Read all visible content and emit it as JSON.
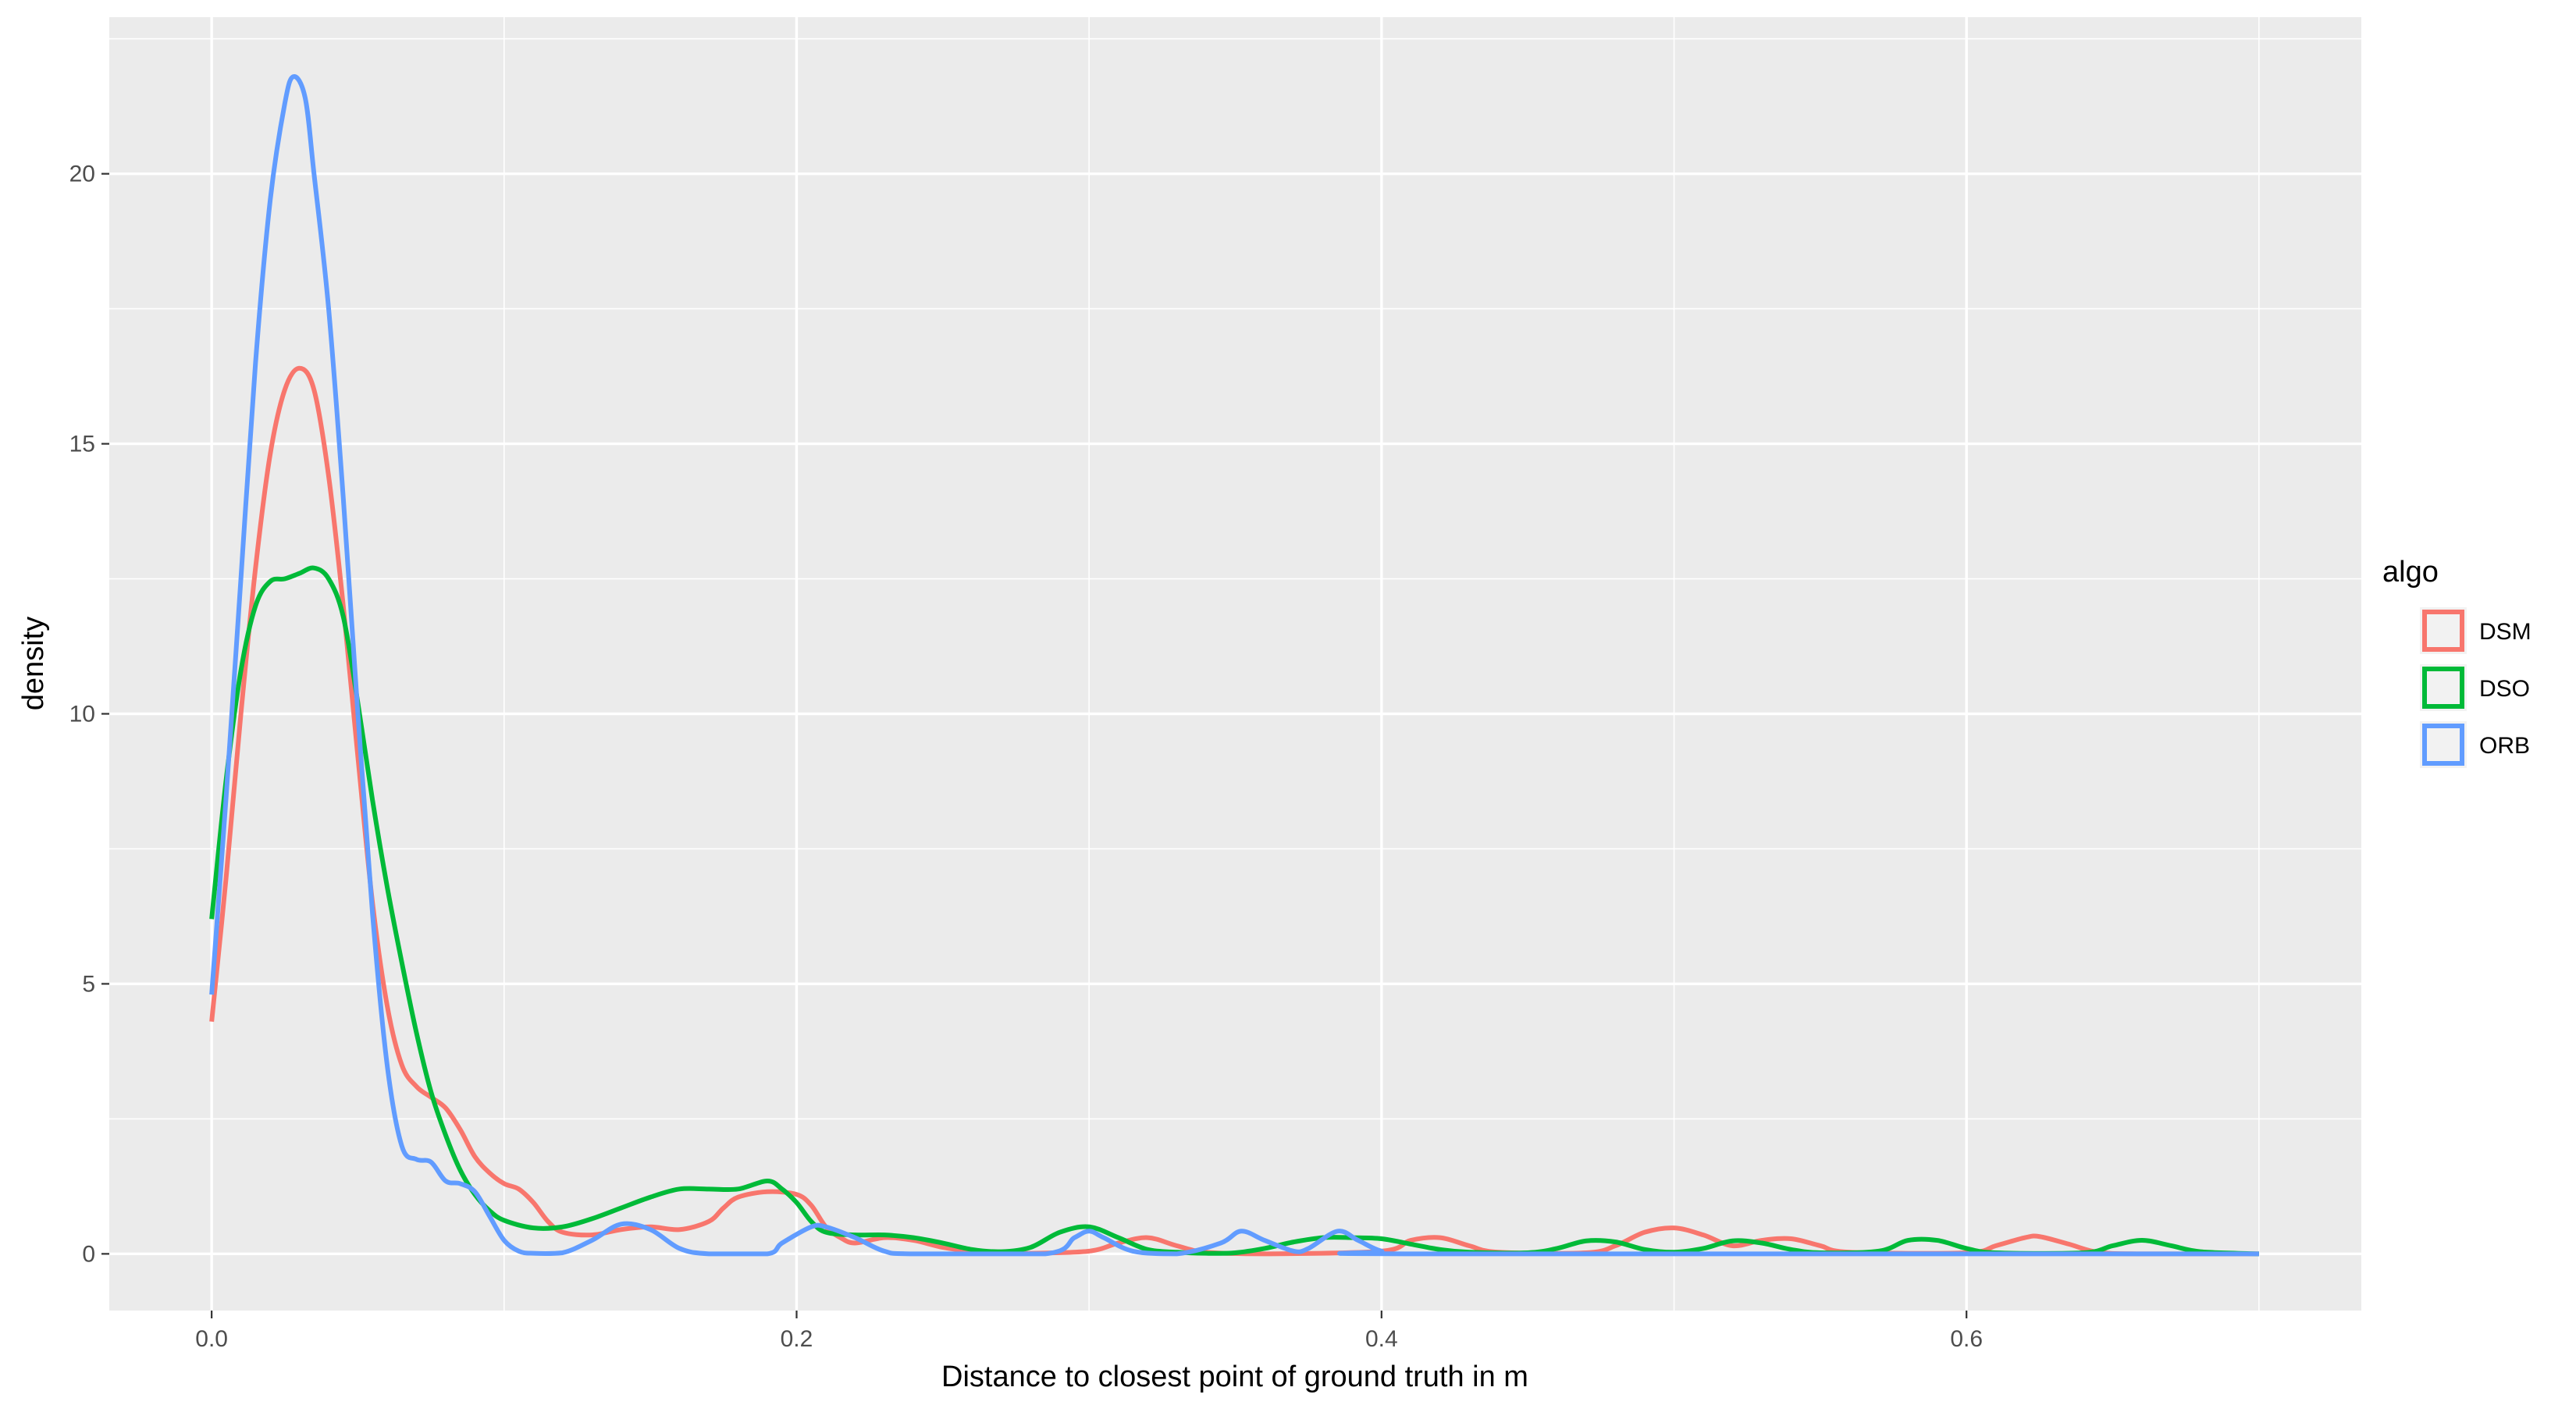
{
  "chart_data": {
    "type": "line",
    "subtype": "density",
    "title": "",
    "xlabel": "Distance to closest point of ground truth in m",
    "ylabel": "density",
    "xlim": [
      -0.035,
      0.735
    ],
    "ylim": [
      -1.05,
      22.9
    ],
    "x_ticks": [
      0.0,
      0.2,
      0.4,
      0.6
    ],
    "x_tick_labels": [
      "0.0",
      "0.2",
      "0.4",
      "0.6"
    ],
    "x_minor_ticks": [
      0.1,
      0.3,
      0.5,
      0.7
    ],
    "y_ticks": [
      0,
      5,
      10,
      15,
      20
    ],
    "y_tick_labels": [
      "0",
      "5",
      "10",
      "15",
      "20"
    ],
    "y_minor_ticks": [
      2.5,
      7.5,
      12.5,
      17.5,
      22.5
    ],
    "grid": true,
    "legend": {
      "title": "algo",
      "position": "right"
    },
    "series": [
      {
        "name": "DSM",
        "color": "#F8766D",
        "points": [
          [
            0.0,
            4.3
          ],
          [
            0.005,
            7.0
          ],
          [
            0.01,
            10.0
          ],
          [
            0.015,
            12.7
          ],
          [
            0.02,
            14.8
          ],
          [
            0.025,
            16.0
          ],
          [
            0.03,
            16.4
          ],
          [
            0.035,
            16.0
          ],
          [
            0.04,
            14.4
          ],
          [
            0.045,
            12.0
          ],
          [
            0.05,
            9.2
          ],
          [
            0.055,
            6.5
          ],
          [
            0.06,
            4.6
          ],
          [
            0.065,
            3.5
          ],
          [
            0.07,
            3.1
          ],
          [
            0.075,
            2.9
          ],
          [
            0.08,
            2.7
          ],
          [
            0.085,
            2.3
          ],
          [
            0.09,
            1.8
          ],
          [
            0.095,
            1.5
          ],
          [
            0.1,
            1.3
          ],
          [
            0.105,
            1.2
          ],
          [
            0.11,
            0.95
          ],
          [
            0.115,
            0.6
          ],
          [
            0.12,
            0.4
          ],
          [
            0.13,
            0.35
          ],
          [
            0.14,
            0.45
          ],
          [
            0.15,
            0.5
          ],
          [
            0.16,
            0.45
          ],
          [
            0.17,
            0.6
          ],
          [
            0.175,
            0.85
          ],
          [
            0.18,
            1.05
          ],
          [
            0.19,
            1.15
          ],
          [
            0.2,
            1.1
          ],
          [
            0.205,
            0.9
          ],
          [
            0.21,
            0.5
          ],
          [
            0.215,
            0.3
          ],
          [
            0.22,
            0.2
          ],
          [
            0.23,
            0.3
          ],
          [
            0.24,
            0.25
          ],
          [
            0.25,
            0.12
          ],
          [
            0.26,
            0.05
          ],
          [
            0.27,
            0.02
          ],
          [
            0.28,
            0.01
          ],
          [
            0.3,
            0.05
          ],
          [
            0.31,
            0.2
          ],
          [
            0.32,
            0.3
          ],
          [
            0.33,
            0.15
          ],
          [
            0.34,
            0.03
          ],
          [
            0.36,
            0.0
          ],
          [
            0.4,
            0.05
          ],
          [
            0.41,
            0.25
          ],
          [
            0.42,
            0.3
          ],
          [
            0.43,
            0.15
          ],
          [
            0.44,
            0.03
          ],
          [
            0.47,
            0.02
          ],
          [
            0.48,
            0.15
          ],
          [
            0.49,
            0.4
          ],
          [
            0.5,
            0.48
          ],
          [
            0.51,
            0.35
          ],
          [
            0.52,
            0.15
          ],
          [
            0.53,
            0.25
          ],
          [
            0.54,
            0.28
          ],
          [
            0.55,
            0.15
          ],
          [
            0.56,
            0.03
          ],
          [
            0.6,
            0.02
          ],
          [
            0.61,
            0.15
          ],
          [
            0.62,
            0.3
          ],
          [
            0.625,
            0.32
          ],
          [
            0.635,
            0.18
          ],
          [
            0.645,
            0.03
          ],
          [
            0.66,
            0.0
          ],
          [
            0.7,
            0.0
          ]
        ]
      },
      {
        "name": "DSO",
        "color": "#00BA38",
        "points": [
          [
            0.0,
            6.2
          ],
          [
            0.005,
            8.8
          ],
          [
            0.01,
            10.8
          ],
          [
            0.015,
            12.0
          ],
          [
            0.02,
            12.45
          ],
          [
            0.025,
            12.5
          ],
          [
            0.03,
            12.6
          ],
          [
            0.035,
            12.7
          ],
          [
            0.04,
            12.5
          ],
          [
            0.045,
            11.8
          ],
          [
            0.05,
            10.2
          ],
          [
            0.055,
            8.4
          ],
          [
            0.06,
            6.8
          ],
          [
            0.065,
            5.4
          ],
          [
            0.07,
            4.1
          ],
          [
            0.075,
            3.0
          ],
          [
            0.08,
            2.2
          ],
          [
            0.085,
            1.55
          ],
          [
            0.09,
            1.1
          ],
          [
            0.095,
            0.8
          ],
          [
            0.1,
            0.62
          ],
          [
            0.11,
            0.48
          ],
          [
            0.12,
            0.5
          ],
          [
            0.13,
            0.65
          ],
          [
            0.14,
            0.85
          ],
          [
            0.15,
            1.05
          ],
          [
            0.16,
            1.2
          ],
          [
            0.17,
            1.2
          ],
          [
            0.18,
            1.2
          ],
          [
            0.19,
            1.35
          ],
          [
            0.195,
            1.2
          ],
          [
            0.2,
            0.95
          ],
          [
            0.205,
            0.6
          ],
          [
            0.21,
            0.4
          ],
          [
            0.22,
            0.35
          ],
          [
            0.23,
            0.35
          ],
          [
            0.24,
            0.3
          ],
          [
            0.25,
            0.2
          ],
          [
            0.26,
            0.08
          ],
          [
            0.27,
            0.04
          ],
          [
            0.28,
            0.12
          ],
          [
            0.29,
            0.4
          ],
          [
            0.3,
            0.5
          ],
          [
            0.31,
            0.3
          ],
          [
            0.32,
            0.08
          ],
          [
            0.33,
            0.03
          ],
          [
            0.34,
            0.01
          ],
          [
            0.35,
            0.02
          ],
          [
            0.36,
            0.1
          ],
          [
            0.37,
            0.22
          ],
          [
            0.38,
            0.3
          ],
          [
            0.39,
            0.3
          ],
          [
            0.4,
            0.28
          ],
          [
            0.41,
            0.18
          ],
          [
            0.42,
            0.08
          ],
          [
            0.43,
            0.03
          ],
          [
            0.45,
            0.02
          ],
          [
            0.46,
            0.1
          ],
          [
            0.47,
            0.24
          ],
          [
            0.48,
            0.22
          ],
          [
            0.49,
            0.08
          ],
          [
            0.5,
            0.03
          ],
          [
            0.51,
            0.1
          ],
          [
            0.52,
            0.24
          ],
          [
            0.53,
            0.2
          ],
          [
            0.54,
            0.08
          ],
          [
            0.55,
            0.02
          ],
          [
            0.57,
            0.05
          ],
          [
            0.58,
            0.25
          ],
          [
            0.59,
            0.25
          ],
          [
            0.6,
            0.1
          ],
          [
            0.61,
            0.02
          ],
          [
            0.64,
            0.02
          ],
          [
            0.65,
            0.15
          ],
          [
            0.66,
            0.25
          ],
          [
            0.67,
            0.15
          ],
          [
            0.68,
            0.04
          ],
          [
            0.7,
            0.0
          ]
        ]
      },
      {
        "name": "ORB",
        "color": "#619CFF",
        "points": [
          [
            0.0,
            4.8
          ],
          [
            0.005,
            8.5
          ],
          [
            0.01,
            12.5
          ],
          [
            0.015,
            16.5
          ],
          [
            0.02,
            19.5
          ],
          [
            0.025,
            21.3
          ],
          [
            0.028,
            21.8
          ],
          [
            0.032,
            21.4
          ],
          [
            0.035,
            20.0
          ],
          [
            0.04,
            17.5
          ],
          [
            0.045,
            14.0
          ],
          [
            0.05,
            10.0
          ],
          [
            0.055,
            6.3
          ],
          [
            0.06,
            3.5
          ],
          [
            0.065,
            2.0
          ],
          [
            0.07,
            1.75
          ],
          [
            0.075,
            1.7
          ],
          [
            0.08,
            1.35
          ],
          [
            0.085,
            1.3
          ],
          [
            0.09,
            1.15
          ],
          [
            0.095,
            0.7
          ],
          [
            0.1,
            0.25
          ],
          [
            0.105,
            0.05
          ],
          [
            0.11,
            0.01
          ],
          [
            0.12,
            0.02
          ],
          [
            0.13,
            0.25
          ],
          [
            0.14,
            0.55
          ],
          [
            0.15,
            0.45
          ],
          [
            0.16,
            0.1
          ],
          [
            0.17,
            0.0
          ],
          [
            0.19,
            0.0
          ],
          [
            0.195,
            0.2
          ],
          [
            0.205,
            0.5
          ],
          [
            0.21,
            0.5
          ],
          [
            0.22,
            0.3
          ],
          [
            0.23,
            0.05
          ],
          [
            0.24,
            0.0
          ],
          [
            0.285,
            0.0
          ],
          [
            0.295,
            0.3
          ],
          [
            0.3,
            0.42
          ],
          [
            0.305,
            0.3
          ],
          [
            0.315,
            0.05
          ],
          [
            0.33,
            0.0
          ],
          [
            0.345,
            0.2
          ],
          [
            0.352,
            0.42
          ],
          [
            0.36,
            0.25
          ],
          [
            0.37,
            0.05
          ],
          [
            0.375,
            0.1
          ],
          [
            0.385,
            0.42
          ],
          [
            0.392,
            0.25
          ],
          [
            0.4,
            0.05
          ],
          [
            0.41,
            0.0
          ],
          [
            0.7,
            0.0
          ]
        ]
      }
    ]
  }
}
